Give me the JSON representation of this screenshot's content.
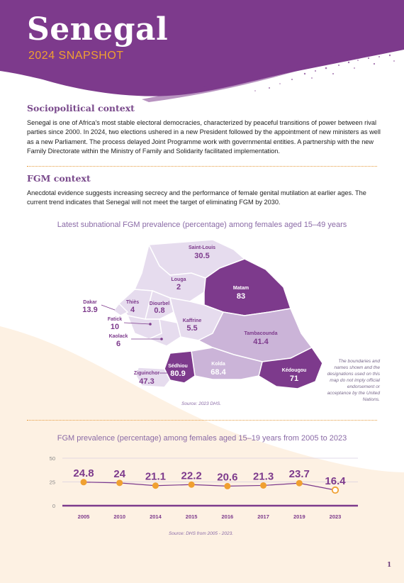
{
  "header": {
    "title": "Senegal",
    "subtitle": "2024 SNAPSHOT"
  },
  "sociopolitical": {
    "heading": "Sociopolitical context",
    "text": "Senegal is one of Africa's most stable electoral democracies, characterized by peaceful transitions of power between rival parties since 2000. In 2024, two elections ushered in a new President followed by the appointment of new ministers as well as a new Parliament. The process delayed Joint Programme work with governmental entities. A partnership with the new Family Directorate within the Ministry of Family and Solidarity facilitated implementation."
  },
  "fgm_context": {
    "heading": "FGM context",
    "text": "Anecdotal evidence suggests increasing secrecy and the performance of female genital mutilation at earlier ages. The current trend indicates that Senegal will not meet the target of eliminating FGM by 2030."
  },
  "map": {
    "title": "Latest subnational FGM prevalence (percentage) among females aged 15–49 years",
    "source": "Source: 2023 DHS.",
    "disclaimer": "The boundaries and names shown and the designations used on this map do not imply official endorsement or acceptance by the United Nations.",
    "regions": [
      {
        "name": "Saint-Louis",
        "value": "30.5"
      },
      {
        "name": "Louga",
        "value": "2"
      },
      {
        "name": "Matam",
        "value": "83"
      },
      {
        "name": "Dakar",
        "value": "13.9"
      },
      {
        "name": "Thiès",
        "value": "4"
      },
      {
        "name": "Diourbel",
        "value": "0.8"
      },
      {
        "name": "Fatick",
        "value": "10"
      },
      {
        "name": "Kaolack",
        "value": "6"
      },
      {
        "name": "Kaffrine",
        "value": "5.5"
      },
      {
        "name": "Tambacounda",
        "value": "41.4"
      },
      {
        "name": "Sédhiou",
        "value": "80.9"
      },
      {
        "name": "Kolda",
        "value": "68.4"
      },
      {
        "name": "Ziguinchor",
        "value": "47.3"
      },
      {
        "name": "Kédougou",
        "value": "71"
      }
    ],
    "colors": {
      "low": "#e6dcee",
      "mid": "#cbb4d8",
      "high": "#7d3a8c",
      "border": "#ffffff"
    }
  },
  "trend": {
    "title": "FGM prevalence (percentage) among females aged 15–19 years from 2005 to 2023",
    "source": "Source: DHS from 2005 - 2023."
  },
  "chart_data": {
    "type": "line",
    "title": "FGM prevalence (percentage) among females aged 15–19 years from 2005 to 2023",
    "categories": [
      "2005",
      "2010",
      "2014",
      "2015",
      "2016",
      "2017",
      "2019",
      "2023"
    ],
    "values": [
      24.8,
      24,
      21.1,
      22.2,
      20.6,
      21.3,
      23.7,
      16.4
    ],
    "labels": [
      "24.8",
      "24",
      "21.1",
      "22.2",
      "20.6",
      "21.3",
      "23.7",
      "16.4"
    ],
    "yticks": [
      "50",
      "25",
      "0"
    ],
    "ylim": [
      0,
      50
    ],
    "grid": true,
    "colors": {
      "line": "#7d3a8c",
      "marker": "#f0a030",
      "last_marker": "#f0a030"
    }
  },
  "page": {
    "number": "1"
  },
  "theme": {
    "purple": "#7d3a8c",
    "orange": "#f0a030",
    "cream": "#fdf1e3"
  }
}
